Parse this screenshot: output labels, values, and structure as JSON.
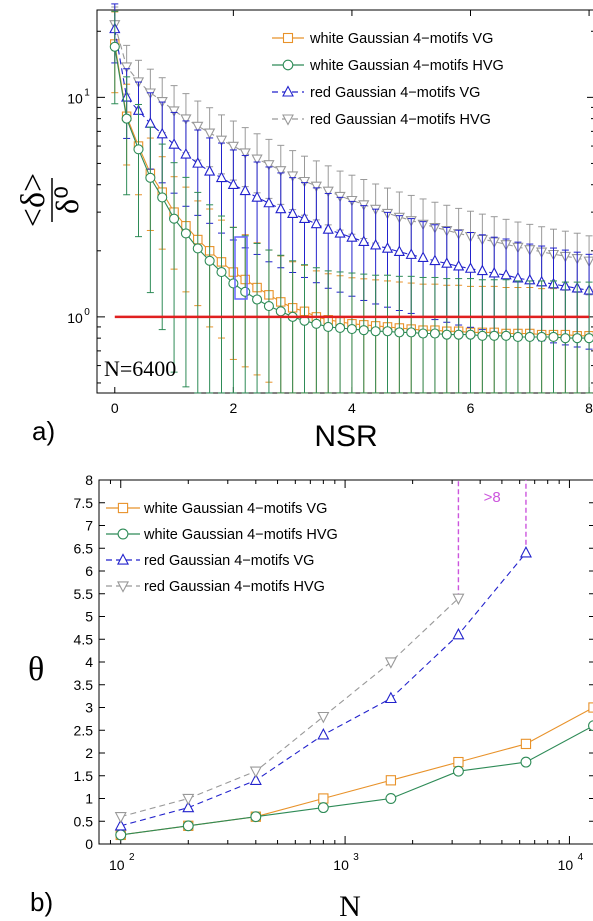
{
  "panel_a": {
    "label": "a)",
    "annotation": "N=6400",
    "xlabel": "NSR",
    "ylabel": "<δ>/δ⁰",
    "x_ticks": [
      "0",
      "2",
      "4",
      "6",
      "8"
    ],
    "y_ticks": [
      "10",
      "10"
    ],
    "y_tick_exponents": [
      "0",
      "1"
    ],
    "legend": [
      "white Gaussian 4−motifs VG",
      "white Gaussian 4−motifs HVG",
      "red Gaussian 4−motifs VG",
      "red Gaussian 4−motifs HVG"
    ]
  },
  "panel_b": {
    "label": "b)",
    "xlabel": "N",
    "ylabel": "θ",
    "annotation": ">8",
    "x_ticks": [
      "10",
      "10",
      "10"
    ],
    "x_tick_exponents": [
      "2",
      "3",
      "4"
    ],
    "y_ticks": [
      "0",
      "0.5",
      "1",
      "1.5",
      "2",
      "2.5",
      "3",
      "3.5",
      "4",
      "4.5",
      "5",
      "5.5",
      "6",
      "6.5",
      "7",
      "7.5",
      "8"
    ],
    "legend": [
      "white Gaussian 4−motifs VG",
      "white Gaussian 4−motifs HVG",
      "red Gaussian 4−motifs VG",
      "red Gaussian 4−motifs HVG"
    ]
  },
  "colors": {
    "white_vg": "#e8922a",
    "white_hvg": "#2e8b57",
    "red_vg": "#2222cc",
    "red_hvg": "#999999",
    "reference_line": "#e02020",
    "annotation": "#cc55dd"
  },
  "chart_data": [
    {
      "type": "line",
      "panel": "a",
      "title": "",
      "xlabel": "NSR",
      "ylabel": "<δ>/δ⁰",
      "xlim": [
        -0.3,
        8.1
      ],
      "ylim": [
        0.45,
        25
      ],
      "y_scale": "log",
      "reference_line_y": 1,
      "error_bars": true,
      "legend_position": "top-right",
      "x": [
        0,
        0.2,
        0.4,
        0.6,
        0.8,
        1.0,
        1.2,
        1.4,
        1.6,
        1.8,
        2.0,
        2.2,
        2.4,
        2.6,
        2.8,
        3.0,
        3.2,
        3.4,
        3.6,
        3.8,
        4.0,
        4.2,
        4.4,
        4.6,
        4.8,
        5.0,
        5.2,
        5.4,
        5.6,
        5.8,
        6.0,
        6.2,
        6.4,
        6.6,
        6.8,
        7.0,
        7.2,
        7.4,
        7.6,
        7.8,
        8.0
      ],
      "series": [
        {
          "name": "white Gaussian 4−motifs VG",
          "values": [
            17.5,
            8.2,
            6.0,
            4.5,
            3.7,
            3.0,
            2.6,
            2.25,
            2.0,
            1.78,
            1.6,
            1.48,
            1.36,
            1.26,
            1.17,
            1.1,
            1.06,
            1.0,
            0.97,
            0.95,
            0.93,
            0.92,
            0.91,
            0.9,
            0.89,
            0.88,
            0.87,
            0.87,
            0.86,
            0.86,
            0.85,
            0.85,
            0.85,
            0.84,
            0.84,
            0.84,
            0.83,
            0.83,
            0.83,
            0.82,
            0.82
          ],
          "error": [
            0.4,
            0.4,
            0.4,
            0.45,
            0.45,
            0.45,
            0.5,
            0.5,
            0.55,
            0.55,
            0.6,
            0.6,
            0.6,
            0.6,
            0.62,
            0.62,
            0.62,
            0.62,
            0.62,
            0.62,
            0.62,
            0.62,
            0.62,
            0.62,
            0.62,
            0.62,
            0.62,
            0.62,
            0.62,
            0.62,
            0.62,
            0.62,
            0.62,
            0.62,
            0.62,
            0.62,
            0.62,
            0.62,
            0.62,
            0.62,
            0.62
          ]
        },
        {
          "name": "white Gaussian 4−motifs HVG",
          "values": [
            17.0,
            8.0,
            5.8,
            4.3,
            3.5,
            2.8,
            2.4,
            2.05,
            1.8,
            1.6,
            1.42,
            1.3,
            1.2,
            1.12,
            1.06,
            1.0,
            0.96,
            0.93,
            0.9,
            0.89,
            0.88,
            0.87,
            0.86,
            0.86,
            0.85,
            0.85,
            0.84,
            0.84,
            0.83,
            0.83,
            0.83,
            0.82,
            0.82,
            0.82,
            0.81,
            0.81,
            0.81,
            0.81,
            0.8,
            0.8,
            0.8
          ],
          "error": [
            0.45,
            0.55,
            0.6,
            0.7,
            0.75,
            0.8,
            0.8,
            0.8,
            0.8,
            0.8,
            0.8,
            0.8,
            0.8,
            0.8,
            0.8,
            0.8,
            0.8,
            0.8,
            0.8,
            0.8,
            0.8,
            0.8,
            0.8,
            0.8,
            0.8,
            0.8,
            0.8,
            0.8,
            0.8,
            0.8,
            0.8,
            0.8,
            0.8,
            0.8,
            0.8,
            0.8,
            0.8,
            0.8,
            0.8,
            0.8,
            0.8
          ]
        },
        {
          "name": "red Gaussian 4−motifs VG",
          "values": [
            20.5,
            10.0,
            8.7,
            7.6,
            6.8,
            6.1,
            5.5,
            5.0,
            4.6,
            4.3,
            4.0,
            3.75,
            3.5,
            3.3,
            3.1,
            2.95,
            2.8,
            2.65,
            2.5,
            2.4,
            2.3,
            2.2,
            2.12,
            2.05,
            1.98,
            1.92,
            1.86,
            1.8,
            1.75,
            1.7,
            1.66,
            1.62,
            1.58,
            1.55,
            1.5,
            1.47,
            1.44,
            1.41,
            1.38,
            1.35,
            1.32
          ],
          "error": [
            0.3,
            0.35,
            0.35,
            0.38,
            0.4,
            0.4,
            0.42,
            0.42,
            0.42,
            0.44,
            0.44,
            0.45,
            0.45,
            0.46,
            0.46,
            0.46,
            0.46,
            0.46,
            0.46,
            0.46,
            0.46,
            0.46,
            0.46,
            0.46,
            0.46,
            0.46,
            0.46,
            0.46,
            0.46,
            0.46,
            0.46,
            0.46,
            0.46,
            0.46,
            0.46,
            0.46,
            0.46,
            0.46,
            0.46,
            0.46,
            0.46
          ]
        },
        {
          "name": "red Gaussian 4−motifs HVG",
          "values": [
            21.5,
            13.8,
            11.8,
            10.5,
            9.6,
            8.7,
            8.0,
            7.4,
            6.9,
            6.4,
            6.0,
            5.6,
            5.25,
            4.95,
            4.65,
            4.4,
            4.15,
            3.95,
            3.75,
            3.55,
            3.4,
            3.25,
            3.1,
            2.97,
            2.85,
            2.75,
            2.65,
            2.56,
            2.48,
            2.4,
            2.33,
            2.26,
            2.2,
            2.14,
            2.08,
            2.03,
            1.98,
            1.93,
            1.89,
            1.85,
            1.8
          ],
          "error": [
            0.2,
            0.25,
            0.25,
            0.28,
            0.28,
            0.3,
            0.3,
            0.3,
            0.3,
            0.3,
            0.3,
            0.3,
            0.3,
            0.3,
            0.3,
            0.3,
            0.3,
            0.3,
            0.3,
            0.3,
            0.3,
            0.3,
            0.3,
            0.3,
            0.3,
            0.3,
            0.3,
            0.3,
            0.3,
            0.3,
            0.3,
            0.3,
            0.3,
            0.3,
            0.3,
            0.3,
            0.3,
            0.3,
            0.3,
            0.3,
            0.3
          ]
        }
      ]
    },
    {
      "type": "line",
      "panel": "b",
      "title": "",
      "xlabel": "N",
      "ylabel": "θ",
      "x_scale": "log",
      "xlim": [
        80,
        13000
      ],
      "ylim": [
        0,
        8
      ],
      "legend_position": "top-left",
      "series": [
        {
          "name": "white Gaussian 4−motifs VG",
          "x": [
            100,
            200,
            400,
            800,
            1600,
            3200,
            6400,
            12800
          ],
          "values": [
            0.2,
            0.4,
            0.6,
            1.0,
            1.4,
            1.8,
            2.2,
            3.0
          ]
        },
        {
          "name": "white Gaussian 4−motifs HVG",
          "x": [
            100,
            200,
            400,
            800,
            1600,
            3200,
            6400,
            12800
          ],
          "values": [
            0.2,
            0.4,
            0.6,
            0.8,
            1.0,
            1.6,
            1.8,
            2.6
          ]
        },
        {
          "name": "red Gaussian 4−motifs VG",
          "x": [
            100,
            200,
            400,
            800,
            1600,
            3200,
            6400
          ],
          "values": [
            0.4,
            0.8,
            1.4,
            2.4,
            3.2,
            4.6,
            6.4
          ]
        },
        {
          "name": "red Gaussian 4−motifs HVG",
          "x": [
            100,
            200,
            400,
            800,
            1600,
            3200
          ],
          "values": [
            0.6,
            1.0,
            1.6,
            2.8,
            4.0,
            5.4
          ]
        }
      ],
      "annotations": [
        {
          "text": ">8",
          "x": [
            3200,
            6400
          ],
          "note_from": [
            5.4,
            6.4
          ]
        }
      ]
    }
  ]
}
